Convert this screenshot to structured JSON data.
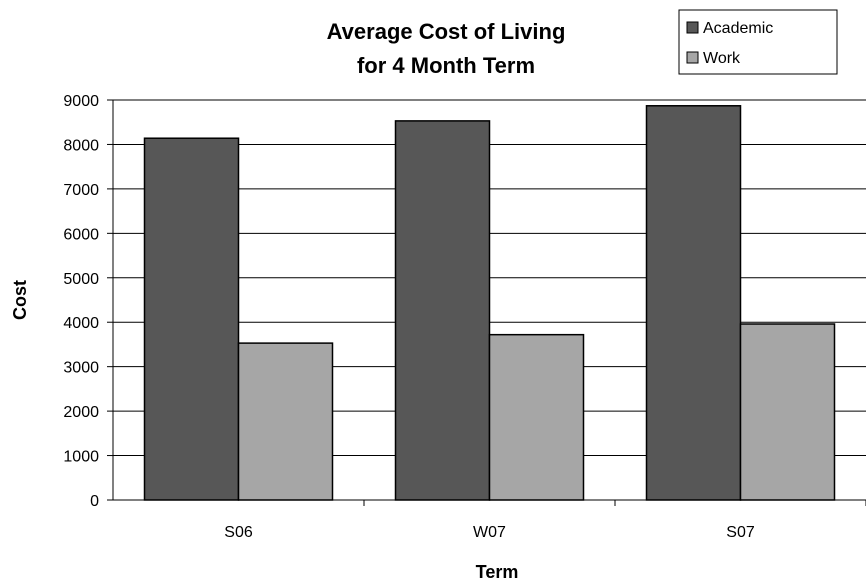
{
  "chart_data": {
    "type": "bar",
    "title": [
      "Average Cost of Living",
      "for 4 Month Term"
    ],
    "xlabel": "Term",
    "ylabel": "Cost",
    "categories": [
      "S06",
      "W07",
      "S07"
    ],
    "series": [
      {
        "name": "Academic",
        "color": "#575757",
        "values": [
          8140,
          8530,
          8870
        ]
      },
      {
        "name": "Work",
        "color": "#a6a6a6",
        "values": [
          3530,
          3720,
          3960
        ]
      }
    ],
    "ylim": [
      0,
      9000
    ],
    "yticks": [
      0,
      1000,
      2000,
      3000,
      4000,
      5000,
      6000,
      7000,
      8000,
      9000
    ],
    "grid": true,
    "legend_position": "top-right"
  }
}
